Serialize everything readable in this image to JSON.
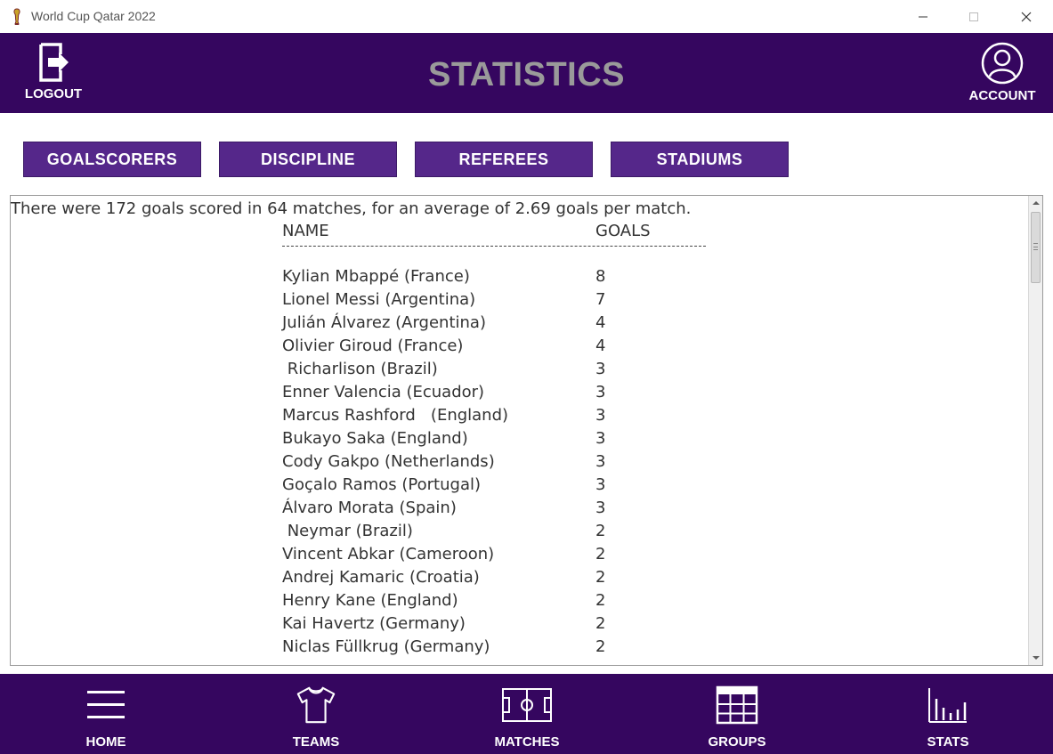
{
  "window": {
    "title": "World Cup Qatar 2022"
  },
  "header": {
    "title": "STATISTICS",
    "logout_label": "LOGOUT",
    "account_label": "ACCOUNT"
  },
  "tabs": [
    {
      "label": "GOALSCORERS"
    },
    {
      "label": "DISCIPLINE"
    },
    {
      "label": "REFEREES"
    },
    {
      "label": "STADIUMS"
    }
  ],
  "content": {
    "summary": "There were 172 goals scored in 64 matches, for an average of 2.69 goals per match.",
    "column_name": "NAME",
    "column_goals": "GOALS",
    "separator": "----------------------------------------------------------------------",
    "rows": [
      {
        "name": "Kylian Mbappé (France)",
        "goals": "8"
      },
      {
        "name": "Lionel Messi (Argentina)",
        "goals": "7"
      },
      {
        "name": "Julián Álvarez (Argentina)",
        "goals": "4"
      },
      {
        "name": "Olivier Giroud (France)",
        "goals": "4"
      },
      {
        "name": " Richarlison (Brazil)",
        "goals": "3"
      },
      {
        "name": "Enner Valencia (Ecuador)",
        "goals": "3"
      },
      {
        "name": "Marcus Rashford   (England)",
        "goals": "3"
      },
      {
        "name": "Bukayo Saka (England)",
        "goals": "3"
      },
      {
        "name": "Cody Gakpo (Netherlands)",
        "goals": "3"
      },
      {
        "name": "Goçalo Ramos (Portugal)",
        "goals": "3"
      },
      {
        "name": "Álvaro Morata (Spain)",
        "goals": "3"
      },
      {
        "name": " Neymar (Brazil)",
        "goals": "2"
      },
      {
        "name": "Vincent Abkar (Cameroon)",
        "goals": "2"
      },
      {
        "name": "Andrej Kamaric (Croatia)",
        "goals": "2"
      },
      {
        "name": "Henry Kane (England)",
        "goals": "2"
      },
      {
        "name": "Kai Havertz (Germany)",
        "goals": "2"
      },
      {
        "name": "Niclas Füllkrug (Germany)",
        "goals": "2"
      }
    ]
  },
  "footer": {
    "items": [
      {
        "label": "HOME",
        "icon": "menu-icon"
      },
      {
        "label": "TEAMS",
        "icon": "shirt-icon"
      },
      {
        "label": "MATCHES",
        "icon": "pitch-icon"
      },
      {
        "label": "GROUPS",
        "icon": "grid-icon"
      },
      {
        "label": "STATS",
        "icon": "bar-chart-icon"
      }
    ]
  },
  "colors": {
    "brand_purple": "#35065f",
    "tab_purple": "#55278a",
    "title_gray": "#9a9a9a"
  }
}
